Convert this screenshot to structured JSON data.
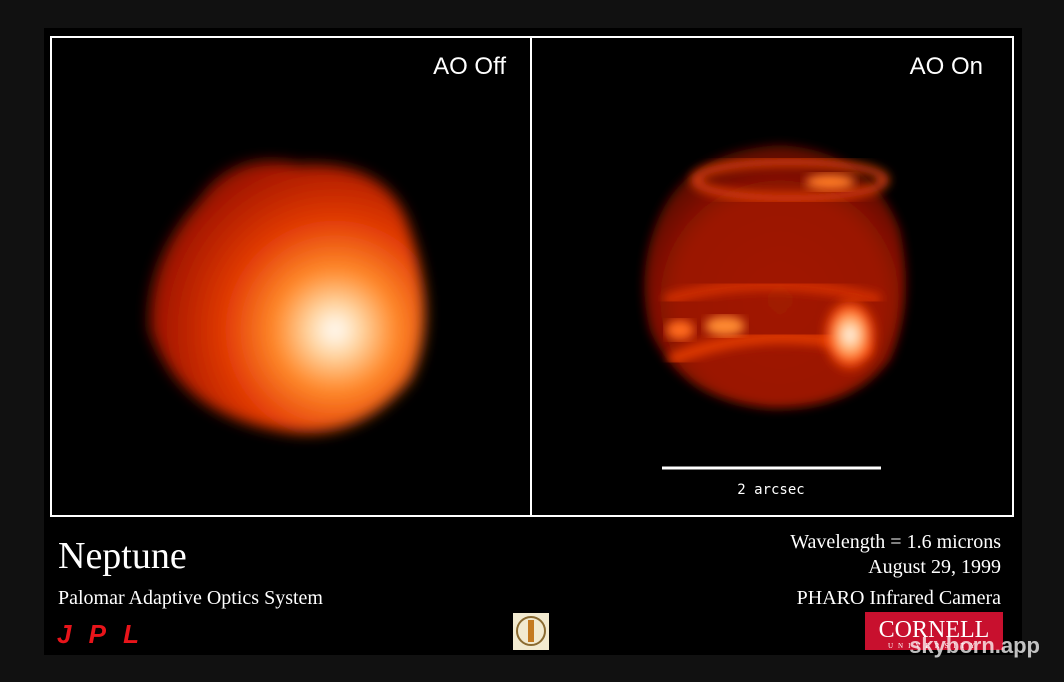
{
  "panels": [
    {
      "label": "AO Off"
    },
    {
      "label": "AO On"
    }
  ],
  "scale_bar": {
    "label": "2 arcsec"
  },
  "caption": {
    "title": "Neptune",
    "subtitle": "Palomar Adaptive Optics System",
    "details": [
      "Wavelength = 1.6 microns",
      "August 29, 1999",
      "PHARO Infrared Camera"
    ]
  },
  "logos": {
    "left": "JPL",
    "right": "CORNELL",
    "right_sub": "UNIVERSITY"
  },
  "watermark": "skyborn.app"
}
